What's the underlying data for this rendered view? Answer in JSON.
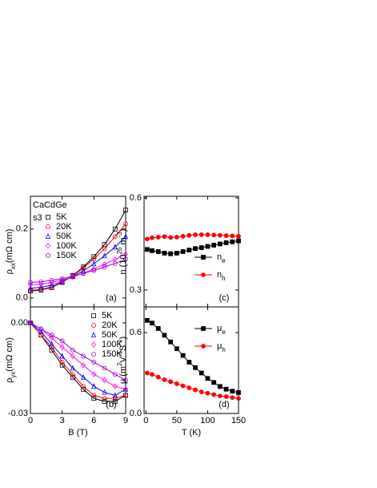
{
  "chart_data": [
    {
      "type": "line",
      "panel_label": "(a)",
      "annotations": [
        "CaCdGe",
        "s3"
      ],
      "ylabel": [
        "ρ",
        "xx",
        "(mΩ cm)"
      ],
      "x": [
        0,
        1,
        2,
        3,
        4,
        5,
        6,
        7,
        8,
        9
      ],
      "xlim": [
        0,
        9
      ],
      "xticks": [
        0,
        3,
        6,
        9
      ],
      "xticklabels": false,
      "ylim": [
        -0.026,
        0.295
      ],
      "yticks": [
        {
          "value": 0,
          "label": "0.0"
        },
        {
          "value": 0.2,
          "label": "0.2"
        }
      ],
      "legend": "top-left",
      "series": [
        {
          "name": "5K",
          "color": "#000000",
          "marker": "square",
          "values": [
            0.02,
            0.023,
            0.03,
            0.045,
            0.065,
            0.09,
            0.12,
            0.155,
            0.2,
            0.255
          ]
        },
        {
          "name": "20K",
          "color": "#ff0000",
          "marker": "circle",
          "values": [
            0.022,
            0.025,
            0.032,
            0.046,
            0.064,
            0.087,
            0.113,
            0.143,
            0.178,
            0.215
          ]
        },
        {
          "name": "50K",
          "color": "#0000ff",
          "marker": "triangle",
          "values": [
            0.028,
            0.031,
            0.037,
            0.048,
            0.062,
            0.079,
            0.099,
            0.122,
            0.148,
            0.178
          ]
        },
        {
          "name": "100K",
          "color": "#ff00ff",
          "marker": "diamond",
          "values": [
            0.038,
            0.04,
            0.045,
            0.052,
            0.061,
            0.072,
            0.084,
            0.098,
            0.112,
            0.127
          ]
        },
        {
          "name": "150K",
          "color": "#9900cc",
          "marker": "circle",
          "values": [
            0.045,
            0.047,
            0.051,
            0.056,
            0.063,
            0.071,
            0.08,
            0.09,
            0.1,
            0.112
          ]
        }
      ]
    },
    {
      "type": "line",
      "panel_label": "(b)",
      "ylabel": [
        "ρ",
        "yx",
        "(mΩ cm)"
      ],
      "xlabel": "B (T)",
      "x": [
        0,
        1,
        2,
        3,
        4,
        5,
        6,
        7,
        8,
        9
      ],
      "xlim": [
        0,
        9
      ],
      "xticks": [
        0,
        3,
        6,
        9
      ],
      "ylim": [
        -0.03,
        0.0053
      ],
      "yticks": [
        {
          "value": 0,
          "label": "0.00"
        },
        {
          "value": -0.03,
          "label": "-0.03"
        }
      ],
      "legend": "top-right",
      "series": [
        {
          "name": "5K",
          "color": "#000000",
          "marker": "square",
          "values": [
            0,
            -0.004,
            -0.009,
            -0.014,
            -0.018,
            -0.022,
            -0.025,
            -0.026,
            -0.026,
            -0.024
          ]
        },
        {
          "name": "20K",
          "color": "#ff0000",
          "marker": "circle",
          "values": [
            0,
            -0.004,
            -0.008,
            -0.013,
            -0.017,
            -0.021,
            -0.024,
            -0.025,
            -0.025,
            -0.024
          ]
        },
        {
          "name": "50K",
          "color": "#0000ff",
          "marker": "triangle",
          "values": [
            0,
            -0.003,
            -0.007,
            -0.011,
            -0.015,
            -0.018,
            -0.021,
            -0.023,
            -0.024,
            -0.022
          ]
        },
        {
          "name": "100K",
          "color": "#ff00ff",
          "marker": "diamond",
          "values": [
            0,
            -0.002,
            -0.005,
            -0.008,
            -0.011,
            -0.014,
            -0.017,
            -0.019,
            -0.021,
            -0.022
          ]
        },
        {
          "name": "150K",
          "color": "#9900cc",
          "marker": "circle",
          "values": [
            0,
            -0.002,
            -0.004,
            -0.006,
            -0.009,
            -0.011,
            -0.013,
            -0.015,
            -0.017,
            -0.019
          ]
        }
      ]
    },
    {
      "type": "line",
      "panel_label": "(c)",
      "ylabel": [
        "n (10",
        "26",
        " m",
        "-3",
        ")"
      ],
      "x": [
        2,
        10,
        20,
        30,
        40,
        50,
        60,
        70,
        80,
        90,
        100,
        110,
        120,
        130,
        140,
        150
      ],
      "xlim": [
        -3,
        150
      ],
      "xticks": [
        0,
        50,
        100,
        150
      ],
      "xticklabels": false,
      "ylim": [
        0.245,
        0.605
      ],
      "yticks": [
        0.6,
        0.3
      ],
      "legend": "bottom-right",
      "series": [
        {
          "name": [
            "n",
            "e"
          ],
          "color": "#000000",
          "marker": "square-filled",
          "values": [
            0.432,
            0.428,
            0.425,
            0.42,
            0.418,
            0.42,
            0.425,
            0.43,
            0.435,
            0.438,
            0.442,
            0.446,
            0.45,
            0.454,
            0.457,
            0.46
          ]
        },
        {
          "name": [
            "n",
            "h"
          ],
          "color": "#ff0000",
          "marker": "circle-filled",
          "values": [
            0.466,
            0.47,
            0.472,
            0.474,
            0.471,
            0.472,
            0.475,
            0.478,
            0.48,
            0.48,
            0.48,
            0.479,
            0.478,
            0.477,
            0.476,
            0.475
          ]
        }
      ]
    },
    {
      "type": "line",
      "panel_label": "(d)",
      "ylabel": [
        "μ (m",
        "2",
        "V",
        "-1",
        "S",
        "-1",
        ")"
      ],
      "xlabel": "T (K)",
      "x": [
        2,
        10,
        20,
        30,
        40,
        50,
        60,
        70,
        80,
        90,
        100,
        110,
        120,
        130,
        140,
        150
      ],
      "xlim": [
        -3,
        150
      ],
      "xticks": [
        0,
        50,
        100,
        150
      ],
      "ylim": [
        0,
        0.79
      ],
      "yticks": [
        {
          "value": 0.6,
          "label": "0.6"
        },
        {
          "value": 0,
          "label": "0.0"
        }
      ],
      "legend": "top-right",
      "series": [
        {
          "name": [
            "μ",
            "e"
          ],
          "color": "#000000",
          "marker": "square-filled",
          "values": [
            0.69,
            0.67,
            0.63,
            0.58,
            0.53,
            0.48,
            0.43,
            0.38,
            0.34,
            0.3,
            0.26,
            0.23,
            0.2,
            0.18,
            0.165,
            0.155
          ]
        },
        {
          "name": [
            "μ",
            "h"
          ],
          "color": "#ff0000",
          "marker": "circle-filled",
          "values": [
            0.3,
            0.29,
            0.27,
            0.25,
            0.235,
            0.22,
            0.205,
            0.19,
            0.175,
            0.16,
            0.15,
            0.14,
            0.13,
            0.125,
            0.118,
            0.112
          ]
        }
      ]
    }
  ]
}
